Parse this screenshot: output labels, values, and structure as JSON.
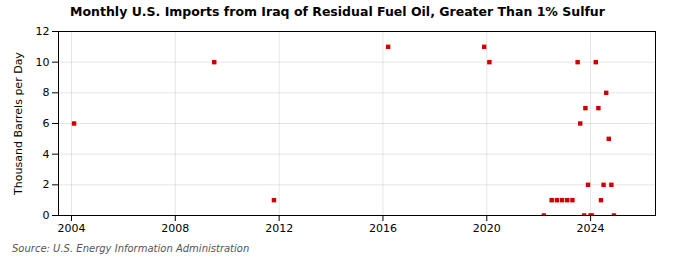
{
  "chart_data": {
    "type": "scatter",
    "title": "Monthly U.S. Imports from Iraq of Residual Fuel Oil, Greater Than 1% Sulfur",
    "ylabel": "Thousand Barrels per Day",
    "source": "Source: U.S. Energy Information Administration",
    "color": "#cc0000",
    "marker": "square",
    "grid": true,
    "xlim": [
      2003.5,
      2026.5
    ],
    "xticks": [
      2004,
      2008,
      2012,
      2016,
      2020,
      2024
    ],
    "ylim": [
      0,
      12
    ],
    "yticks": [
      0,
      2,
      4,
      6,
      8,
      10,
      12
    ],
    "x": [
      2004.1,
      2009.5,
      2011.8,
      2016.2,
      2019.9,
      2020.1,
      2022.2,
      2022.5,
      2022.7,
      2022.9,
      2023.1,
      2023.3,
      2023.5,
      2023.6,
      2023.75,
      2023.8,
      2023.9,
      2024.0,
      2024.05,
      2024.2,
      2024.3,
      2024.4,
      2024.5,
      2024.6,
      2024.7,
      2024.8,
      2024.9
    ],
    "values": [
      6,
      10,
      1,
      11,
      11,
      10,
      0,
      1,
      1,
      1,
      1,
      1,
      10,
      6,
      0,
      7,
      2,
      0,
      0,
      10,
      7,
      1,
      2,
      8,
      5,
      2,
      0
    ]
  }
}
